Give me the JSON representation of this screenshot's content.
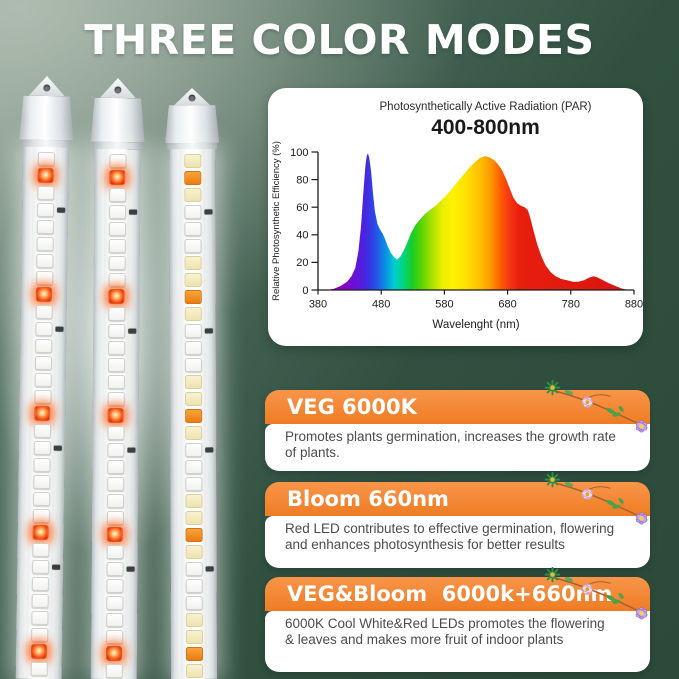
{
  "page": {
    "title": "THREE COLOR MODES"
  },
  "palette": {
    "background_dark_green": "#2d4a3c",
    "background_light_sage": "#a9b6ab",
    "banner_orange": "#f5893b",
    "banner_orange_deep": "#ef7c24",
    "title_text": "#ffffff",
    "body_text": "#4c4c4c",
    "axis_text": "#1c1c1c",
    "red_led_glow": "#ff6a1e",
    "amber_led": "#f08a1d"
  },
  "chart_panel": {
    "subtitle": "Photosynthetically Active Radiation (PAR)",
    "range_label": "400-800nm"
  },
  "chart_data": {
    "type": "area",
    "title": "Photosynthetically Active Radiation (PAR)",
    "subtitle": "400-800nm",
    "xlabel": "Wavelenght (nm)",
    "ylabel": "Relative Photosynthetic Efficiency (%)",
    "xlim": [
      380,
      880
    ],
    "ylim": [
      0,
      100
    ],
    "x_ticks": [
      380,
      480,
      580,
      680,
      780,
      880
    ],
    "y_ticks": [
      0,
      20,
      40,
      60,
      80,
      100
    ],
    "grid": false,
    "legend": false,
    "series_name": "Relative photosynthetic efficiency across visible spectrum",
    "points": [
      [
        380,
        0
      ],
      [
        396,
        0
      ],
      [
        406,
        1
      ],
      [
        416,
        3
      ],
      [
        426,
        6
      ],
      [
        433,
        10
      ],
      [
        439,
        16
      ],
      [
        444,
        28
      ],
      [
        448,
        46
      ],
      [
        452,
        72
      ],
      [
        455,
        90
      ],
      [
        457,
        97
      ],
      [
        459,
        99
      ],
      [
        461,
        96
      ],
      [
        464,
        86
      ],
      [
        467,
        70
      ],
      [
        470,
        57
      ],
      [
        474,
        48
      ],
      [
        478,
        44
      ],
      [
        482,
        41
      ],
      [
        486,
        37
      ],
      [
        490,
        32
      ],
      [
        495,
        27
      ],
      [
        500,
        24
      ],
      [
        505,
        22
      ],
      [
        510,
        24
      ],
      [
        515,
        28
      ],
      [
        520,
        33
      ],
      [
        527,
        41
      ],
      [
        534,
        47
      ],
      [
        541,
        51
      ],
      [
        549,
        55
      ],
      [
        557,
        58
      ],
      [
        566,
        61
      ],
      [
        575,
        65
      ],
      [
        584,
        69
      ],
      [
        593,
        74
      ],
      [
        602,
        79
      ],
      [
        611,
        84
      ],
      [
        620,
        89
      ],
      [
        629,
        93
      ],
      [
        637,
        96
      ],
      [
        645,
        97
      ],
      [
        652,
        96
      ],
      [
        659,
        94
      ],
      [
        665,
        91
      ],
      [
        671,
        87
      ],
      [
        677,
        81
      ],
      [
        683,
        74
      ],
      [
        689,
        67
      ],
      [
        695,
        63
      ],
      [
        701,
        61
      ],
      [
        707,
        60
      ],
      [
        712,
        58
      ],
      [
        716,
        52
      ],
      [
        721,
        43
      ],
      [
        727,
        33
      ],
      [
        733,
        25
      ],
      [
        740,
        18
      ],
      [
        748,
        13
      ],
      [
        756,
        10
      ],
      [
        765,
        8
      ],
      [
        774,
        7
      ],
      [
        783,
        6
      ],
      [
        792,
        6
      ],
      [
        801,
        7
      ],
      [
        809,
        9
      ],
      [
        816,
        10
      ],
      [
        823,
        9
      ],
      [
        831,
        7
      ],
      [
        840,
        5
      ],
      [
        850,
        3
      ],
      [
        861,
        1
      ],
      [
        871,
        0
      ],
      [
        880,
        0
      ]
    ],
    "spectrum_gradient": [
      [
        380,
        "#7a00a8"
      ],
      [
        420,
        "#8a00c0"
      ],
      [
        442,
        "#6414dc"
      ],
      [
        456,
        "#4428e0"
      ],
      [
        470,
        "#2a4ce8"
      ],
      [
        486,
        "#0b8ce0"
      ],
      [
        500,
        "#00ccd4"
      ],
      [
        514,
        "#00d688"
      ],
      [
        528,
        "#16cc2c"
      ],
      [
        544,
        "#5ad400"
      ],
      [
        560,
        "#a8e000"
      ],
      [
        576,
        "#e6ee00"
      ],
      [
        592,
        "#fff200"
      ],
      [
        614,
        "#ffe100"
      ],
      [
        638,
        "#ffbc00"
      ],
      [
        654,
        "#ff9600"
      ],
      [
        668,
        "#ff6000"
      ],
      [
        682,
        "#f63812"
      ],
      [
        698,
        "#e81e0e"
      ],
      [
        880,
        "#d81310"
      ]
    ]
  },
  "banners": [
    {
      "header": "VEG 6000K",
      "body": "Promotes plants germination, increases the growth rate of plants."
    },
    {
      "header": "Bloom 660nm",
      "body": "Red LED contributes to effective germination, flowering and enhances photosynthesis for better results"
    },
    {
      "header": "VEG&Bloom  6000k+660nm",
      "body": "6000K Cool White&Red LEDs promotes the flowering & leaves and makes more fruit of indoor plants"
    }
  ],
  "tubes": {
    "count": 3,
    "slots": 31,
    "led_legend": {
      "w": "white-led",
      "c": "cream-led",
      "a": "amber-led",
      "R": "red-glowing-led",
      "wr": "white-led-with-resistor"
    },
    "patterns": [
      [
        "w",
        "R",
        "w",
        "wr",
        "w",
        "w",
        "w"
      ],
      [
        "w",
        "R",
        "w",
        "wr",
        "w",
        "w",
        "w"
      ],
      [
        "c",
        "a",
        "c",
        "wr",
        "w",
        "w",
        "c"
      ]
    ]
  }
}
